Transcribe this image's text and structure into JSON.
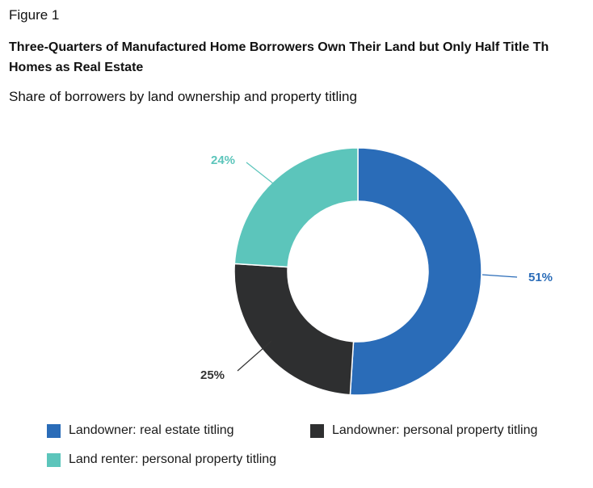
{
  "header": {
    "figure_label": "Figure 1",
    "title_line1": "Three-Quarters of Manufactured Home Borrowers Own Their Land but Only Half Title Th",
    "title_line2": "Homes as Real Estate",
    "subtitle": "Share of borrowers by land ownership and property titling"
  },
  "chart_data": {
    "type": "pie",
    "style": "donut",
    "title": "Three-Quarters of Manufactured Home Borrowers Own Their Land but Only Half Title Th Homes as Real Estate",
    "subtitle": "Share of borrowers by land ownership and property titling",
    "slices": [
      {
        "name": "Landowner: real estate titling",
        "value": 51,
        "label": "51%",
        "color": "#2a6cb8",
        "label_color": "#2a6cb8"
      },
      {
        "name": "Landowner: personal property titling",
        "value": 25,
        "label": "25%",
        "color": "#2e2f30",
        "label_color": "#333333"
      },
      {
        "name": "Land renter: personal property titling",
        "value": 24,
        "label": "24%",
        "color": "#5cc5bb",
        "label_color": "#5cc5bb"
      }
    ],
    "legend_position": "bottom"
  }
}
